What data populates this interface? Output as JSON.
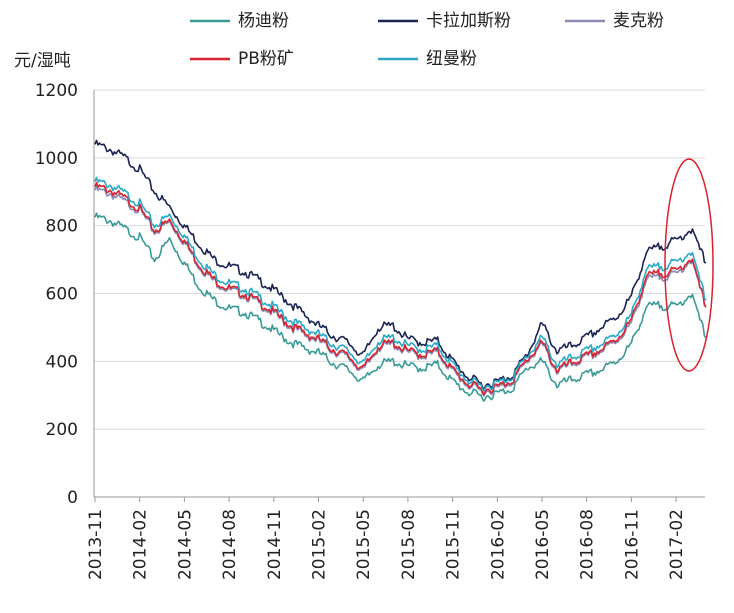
{
  "chart_data": {
    "type": "line",
    "ylabel": "元/湿吨",
    "ylim": [
      0,
      1200
    ],
    "y_ticks": [
      0,
      200,
      400,
      600,
      800,
      1000,
      1200
    ],
    "x_tick_labels": [
      "2013-11",
      "2014-02",
      "2014-05",
      "2014-08",
      "2014-11",
      "2015-02",
      "2015-05",
      "2015-08",
      "2015-11",
      "2016-02",
      "2016-05",
      "2016-08",
      "2016-11",
      "2017-02"
    ],
    "grid": "horizontal",
    "legend_placement": "top",
    "x_months": [
      "2013-11",
      "2013-12",
      "2014-01",
      "2014-02",
      "2014-03",
      "2014-04",
      "2014-05",
      "2014-06",
      "2014-07",
      "2014-08",
      "2014-09",
      "2014-10",
      "2014-11",
      "2014-12",
      "2015-01",
      "2015-02",
      "2015-03",
      "2015-04",
      "2015-05",
      "2015-06",
      "2015-07",
      "2015-08",
      "2015-09",
      "2015-10",
      "2015-11",
      "2015-12",
      "2016-01",
      "2016-02",
      "2016-03",
      "2016-04",
      "2016-05",
      "2016-06",
      "2016-07",
      "2016-08",
      "2016-09",
      "2016-10",
      "2016-11",
      "2016-12",
      "2017-01",
      "2017-02",
      "2017-03",
      "2017-04"
    ],
    "series": [
      {
        "name": "杨迪粉",
        "color": "#3a9b96",
        "values": [
          825,
          815,
          790,
          765,
          700,
          760,
          690,
          620,
          580,
          555,
          545,
          520,
          490,
          460,
          440,
          425,
          395,
          375,
          340,
          390,
          400,
          385,
          380,
          390,
          340,
          310,
          295,
          305,
          320,
          380,
          400,
          330,
          345,
          360,
          375,
          400,
          450,
          560,
          565,
          560,
          600,
          470
        ]
      },
      {
        "name": "卡拉加斯粉",
        "color": "#1b2452",
        "values": [
          1040,
          1025,
          1000,
          965,
          900,
          855,
          800,
          745,
          700,
          680,
          665,
          640,
          610,
          575,
          540,
          505,
          475,
          455,
          415,
          500,
          505,
          465,
          455,
          460,
          400,
          355,
          330,
          340,
          360,
          420,
          510,
          430,
          445,
          470,
          500,
          530,
          590,
          720,
          740,
          755,
          790,
          690
        ]
      },
      {
        "name": "麦克粉",
        "color": "#8a8ab5",
        "values": [
          905,
          895,
          870,
          845,
          780,
          810,
          750,
          680,
          635,
          610,
          595,
          570,
          540,
          505,
          480,
          460,
          430,
          410,
          370,
          440,
          450,
          425,
          415,
          425,
          370,
          330,
          310,
          320,
          340,
          400,
          450,
          370,
          390,
          410,
          430,
          460,
          510,
          640,
          650,
          655,
          700,
          560
        ]
      },
      {
        "name": "PB粉矿",
        "color": "#d9232e",
        "values": [
          915,
          905,
          880,
          850,
          785,
          815,
          755,
          685,
          640,
          615,
          600,
          575,
          545,
          510,
          485,
          465,
          435,
          415,
          375,
          445,
          455,
          430,
          420,
          430,
          375,
          335,
          315,
          325,
          345,
          405,
          455,
          375,
          395,
          415,
          435,
          465,
          520,
          650,
          660,
          665,
          705,
          560
        ]
      },
      {
        "name": "纽曼粉",
        "color": "#2aa9c7",
        "values": [
          930,
          920,
          895,
          865,
          800,
          830,
          770,
          700,
          655,
          630,
          615,
          590,
          560,
          525,
          500,
          480,
          450,
          430,
          390,
          460,
          470,
          445,
          435,
          445,
          390,
          345,
          325,
          335,
          355,
          415,
          470,
          390,
          410,
          430,
          450,
          480,
          535,
          670,
          680,
          690,
          725,
          580
        ]
      }
    ]
  },
  "legend": {
    "items": [
      {
        "name": "杨迪粉",
        "color": "#3a9b96"
      },
      {
        "name": "卡拉加斯粉",
        "color": "#1b2452"
      },
      {
        "name": "麦克粉",
        "color": "#8a8ab5"
      },
      {
        "name": "PB粉矿",
        "color": "#d9232e"
      },
      {
        "name": "纽曼粉",
        "color": "#2aa9c7"
      }
    ]
  },
  "annotation": {
    "shape": "ellipse",
    "color": "#d9232e"
  }
}
